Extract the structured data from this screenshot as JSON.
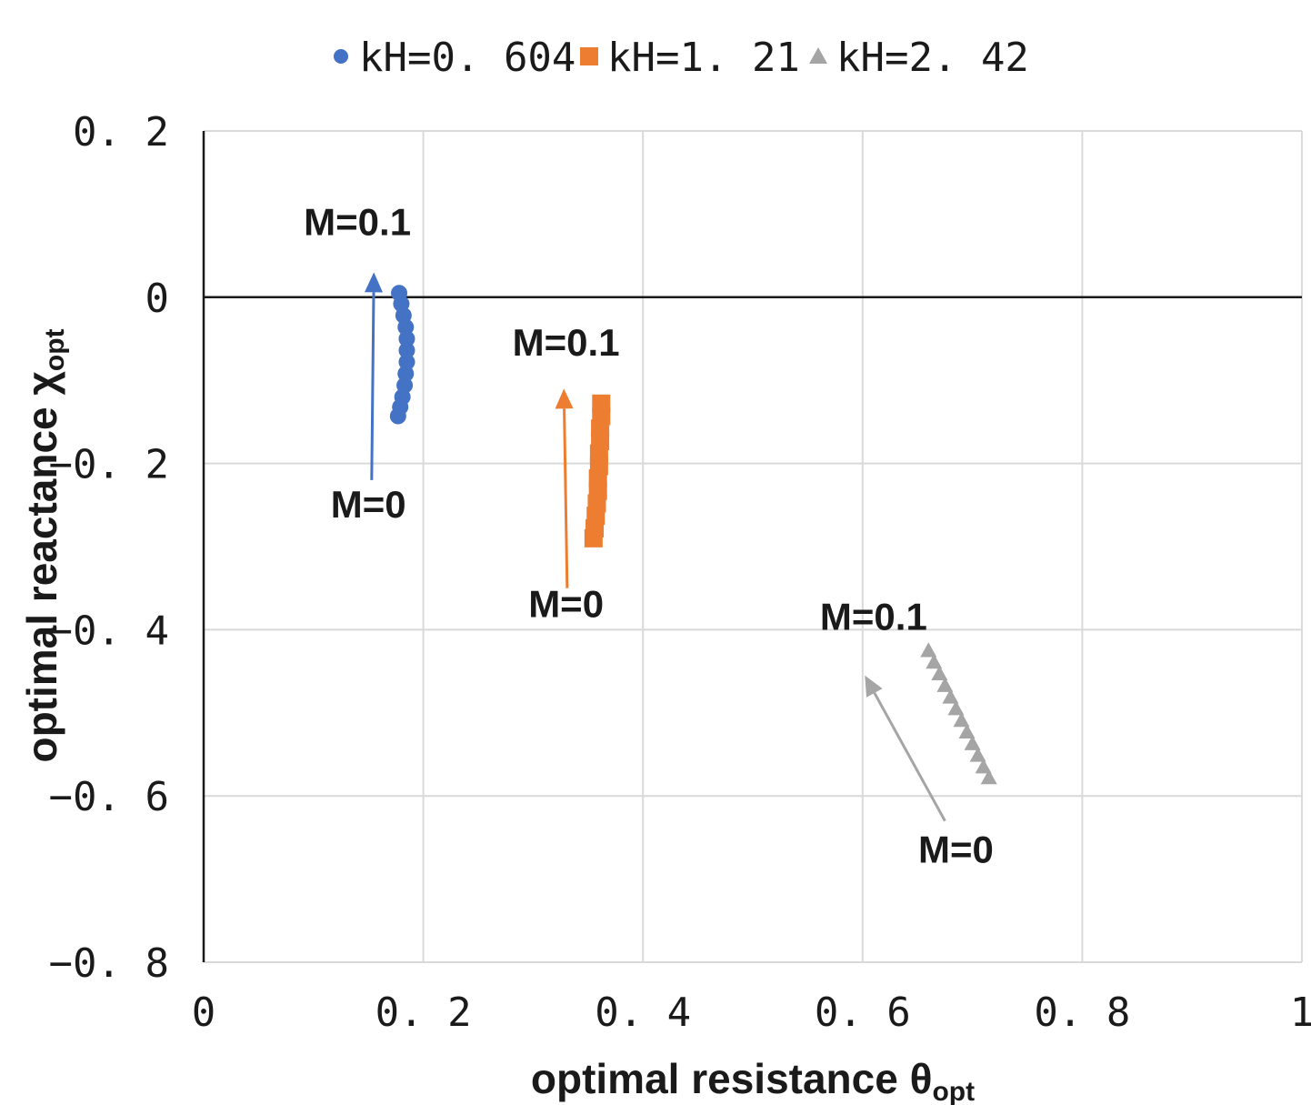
{
  "chart_data": {
    "type": "scatter",
    "xlabel": "optimal resistance θ",
    "xlabel_sub": "opt",
    "ylabel": "optimal reactance χ",
    "ylabel_sub": "opt",
    "xlim": [
      0,
      1
    ],
    "ylim": [
      -0.8,
      0.2
    ],
    "x_ticks": [
      0,
      0.2,
      0.4,
      0.6,
      0.8,
      1
    ],
    "x_tick_labels": [
      "0",
      "0. 2",
      "0. 4",
      "0. 6",
      "0. 8",
      "1"
    ],
    "y_ticks": [
      0.2,
      0,
      -0.2,
      -0.4,
      -0.6,
      -0.8
    ],
    "y_tick_labels": [
      "0. 2",
      "0",
      "−0. 2",
      "−0. 4",
      "−0. 6",
      "−0. 8"
    ],
    "grid": true,
    "legend_position": "top-center",
    "series": [
      {
        "name": "kH=0. 604",
        "marker": "circle",
        "color": "#4472c4",
        "x": [
          0.178,
          0.18,
          0.182,
          0.184,
          0.185,
          0.185,
          0.185,
          0.184,
          0.183,
          0.181,
          0.179,
          0.177
        ],
        "y": [
          0.005,
          -0.008,
          -0.022,
          -0.036,
          -0.05,
          -0.064,
          -0.078,
          -0.092,
          -0.106,
          -0.12,
          -0.132,
          -0.143
        ]
      },
      {
        "name": "kH=1. 21",
        "marker": "square",
        "color": "#ed7d31",
        "x": [
          0.362,
          0.362,
          0.361,
          0.361,
          0.36,
          0.36,
          0.359,
          0.359,
          0.358,
          0.357,
          0.356,
          0.355
        ],
        "y": [
          -0.128,
          -0.143,
          -0.158,
          -0.173,
          -0.188,
          -0.203,
          -0.218,
          -0.233,
          -0.248,
          -0.263,
          -0.278,
          -0.29
        ]
      },
      {
        "name": "kH=2. 42",
        "marker": "triangle",
        "color": "#a5a5a5",
        "x": [
          0.66,
          0.665,
          0.67,
          0.675,
          0.68,
          0.685,
          0.69,
          0.695,
          0.7,
          0.705,
          0.71,
          0.715
        ],
        "y": [
          -0.425,
          -0.439,
          -0.453,
          -0.467,
          -0.481,
          -0.495,
          -0.509,
          -0.523,
          -0.537,
          -0.551,
          -0.565,
          -0.578
        ]
      }
    ],
    "annotations": [
      {
        "text": "M=0.1",
        "x": 0.14,
        "y": 0.075,
        "color": "#1a1a1a"
      },
      {
        "text": "M=0",
        "x": 0.15,
        "y": -0.265,
        "color": "#1a1a1a"
      },
      {
        "text": "M=0.1",
        "x": 0.33,
        "y": -0.07,
        "color": "#1a1a1a"
      },
      {
        "text": "M=0",
        "x": 0.33,
        "y": -0.385,
        "color": "#1a1a1a"
      },
      {
        "text": "M=0.1",
        "x": 0.61,
        "y": -0.4,
        "color": "#1a1a1a"
      },
      {
        "text": "M=0",
        "x": 0.685,
        "y": -0.68,
        "color": "#1a1a1a"
      }
    ],
    "arrows": [
      {
        "from": [
          0.153,
          -0.22
        ],
        "to": [
          0.155,
          0.03
        ],
        "color": "#4472c4"
      },
      {
        "from": [
          0.331,
          -0.35
        ],
        "to": [
          0.328,
          -0.11
        ],
        "color": "#ed7d31"
      },
      {
        "from": [
          0.675,
          -0.63
        ],
        "to": [
          0.602,
          -0.455
        ],
        "color": "#a5a5a5"
      }
    ]
  }
}
